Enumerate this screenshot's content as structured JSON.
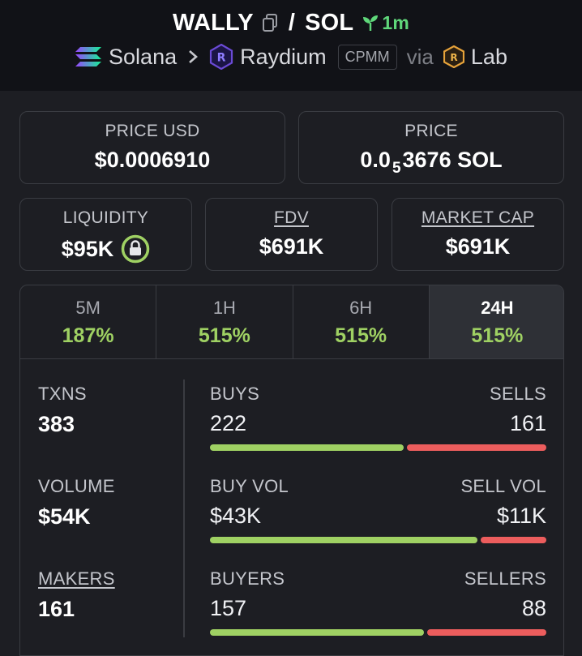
{
  "header": {
    "token": "WALLY",
    "separator": "/",
    "quote": "SOL",
    "age": "1m",
    "chain": "Solana",
    "dex": "Raydium",
    "pool_type": "CPMM",
    "via": "via",
    "source": "Lab"
  },
  "price_usd": {
    "label": "PRICE USD",
    "value": "$0.0006910"
  },
  "price": {
    "label": "PRICE",
    "prefix": "0.0",
    "zeros": "5",
    "suffix": "3676 SOL"
  },
  "liquidity": {
    "label": "LIQUIDITY",
    "value": "$95K"
  },
  "fdv": {
    "label": "FDV",
    "value": "$691K"
  },
  "market_cap": {
    "label": "MARKET CAP",
    "value": "$691K"
  },
  "tabs": [
    {
      "label": "5M",
      "value": "187%"
    },
    {
      "label": "1H",
      "value": "515%"
    },
    {
      "label": "6H",
      "value": "515%"
    },
    {
      "label": "24H",
      "value": "515%",
      "active": true
    }
  ],
  "stats": {
    "txns": {
      "label": "TXNS",
      "value": "383"
    },
    "volume": {
      "label": "VOLUME",
      "value": "$54K"
    },
    "makers": {
      "label": "MAKERS",
      "value": "161"
    }
  },
  "pairs": {
    "buys_sells": {
      "left_label": "BUYS",
      "left_value": "222",
      "right_label": "SELLS",
      "right_value": "161",
      "buy_fraction": 0.58
    },
    "vol": {
      "left_label": "BUY VOL",
      "left_value": "$43K",
      "right_label": "SELL VOL",
      "right_value": "$11K",
      "buy_fraction": 0.8
    },
    "traders": {
      "left_label": "BUYERS",
      "left_value": "157",
      "right_label": "SELLERS",
      "right_value": "88",
      "buy_fraction": 0.64
    }
  },
  "colors": {
    "accent_green": "#9fd163",
    "sell_red": "#ec5d5d",
    "age_green": "#5fd77a"
  }
}
